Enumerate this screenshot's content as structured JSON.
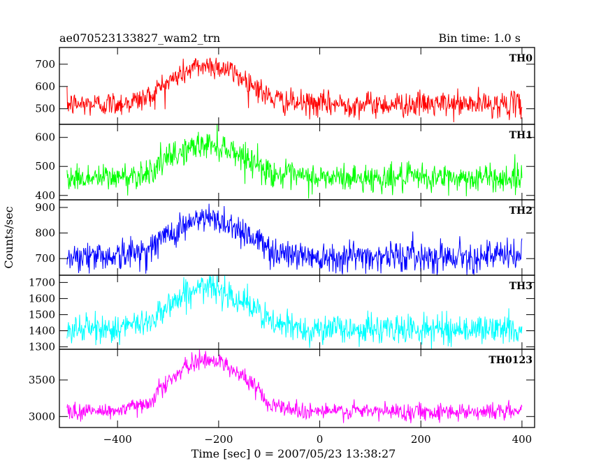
{
  "header": {
    "title": "ae070523133827_wam2_trn",
    "bin_time": "Bin time: 1.0 s"
  },
  "chart_data": {
    "type": "line",
    "title": "ae070523133827_wam2_trn",
    "subtitle": "Bin time: 1.0 s",
    "xlabel": "Time [sec] 0 = 2007/05/23 13:38:27",
    "ylabel": "Counts/sec",
    "xlim": [
      -515,
      425
    ],
    "x_ticks": [
      -400,
      -200,
      0,
      200,
      400
    ],
    "x_range": [
      -500,
      400
    ],
    "bin_time": 1.0,
    "panels": [
      {
        "name": "TH0",
        "color": "#ff0000",
        "ylim": [
          430,
          775
        ],
        "y_ticks": [
          500,
          600,
          700
        ],
        "baseline": 520,
        "peak": 695,
        "peak_time": -220,
        "noise": 28
      },
      {
        "name": "TH1",
        "color": "#00ff00",
        "ylim": [
          385,
          645
        ],
        "y_ticks": [
          400,
          500,
          600
        ],
        "baseline": 460,
        "peak": 575,
        "peak_time": -220,
        "noise": 24
      },
      {
        "name": "TH2",
        "color": "#0000ff",
        "ylim": [
          635,
          930
        ],
        "y_ticks": [
          700,
          800,
          900
        ],
        "baseline": 710,
        "peak": 855,
        "peak_time": -220,
        "noise": 30
      },
      {
        "name": "TH3",
        "color": "#00ffff",
        "ylim": [
          1285,
          1745
        ],
        "y_ticks": [
          1300,
          1400,
          1500,
          1600,
          1700
        ],
        "baseline": 1410,
        "peak": 1670,
        "peak_time": -220,
        "noise": 45
      },
      {
        "name": "TH0123",
        "color": "#ff00ff",
        "ylim": [
          2850,
          3920
        ],
        "y_ticks": [
          3000,
          3500
        ],
        "baseline": 3070,
        "peak": 3780,
        "peak_time": -220,
        "noise": 60
      }
    ]
  }
}
